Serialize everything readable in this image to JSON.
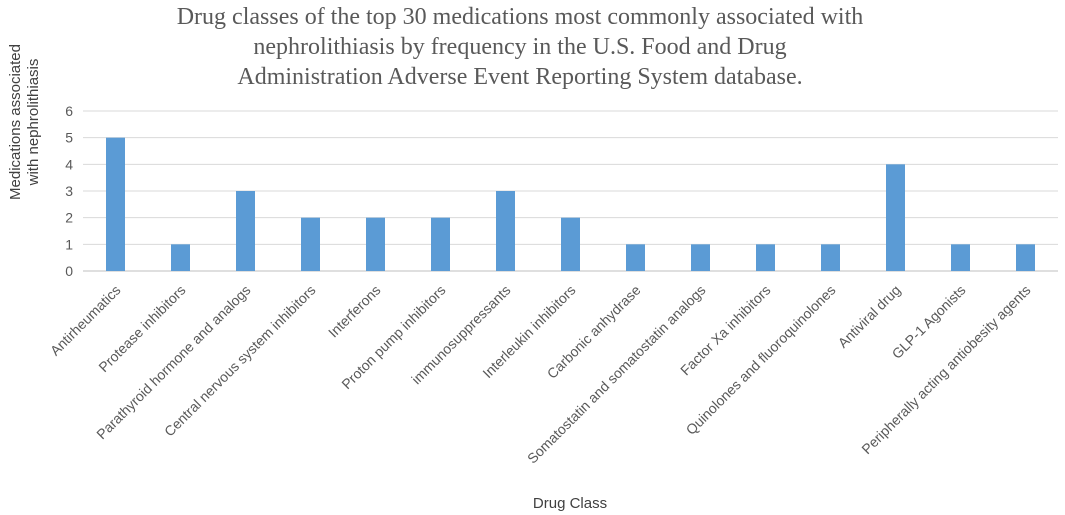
{
  "chart_data": {
    "type": "bar",
    "title_lines": [
      "Drug classes of the top 30 medications most commonly associated with",
      "nephrolithiasis by frequency in the U.S. Food and Drug",
      "Administration Adverse Event Reporting System database."
    ],
    "xlabel": "Drug Class",
    "ylabel_lines": [
      "Medications associated",
      "with nephrolithiasis"
    ],
    "ylim": [
      0,
      6
    ],
    "yticks": [
      0,
      1,
      2,
      3,
      4,
      5,
      6
    ],
    "grid": true,
    "legend": "none",
    "bar_color": "#5b9bd5",
    "categories": [
      "Antirheumatics",
      "Protease inhibitors",
      "Parathyroid hormone and analogs",
      "Central nervous system inhibitors",
      "Interferons",
      "Proton pump inhibitors",
      "immunosuppressants",
      "Interleukin inhibitors",
      "Carbonic anhydrase",
      "Somatostatin and somatostatin analogs",
      "Factor Xa inhibitors",
      "Quinolones and fluoroquinolones",
      "Antiviral drug",
      "GLP-1 Agonists",
      "Peripherally acting antiobesity agents"
    ],
    "values": [
      5,
      1,
      3,
      2,
      2,
      2,
      3,
      2,
      1,
      1,
      1,
      1,
      4,
      1,
      1
    ]
  }
}
